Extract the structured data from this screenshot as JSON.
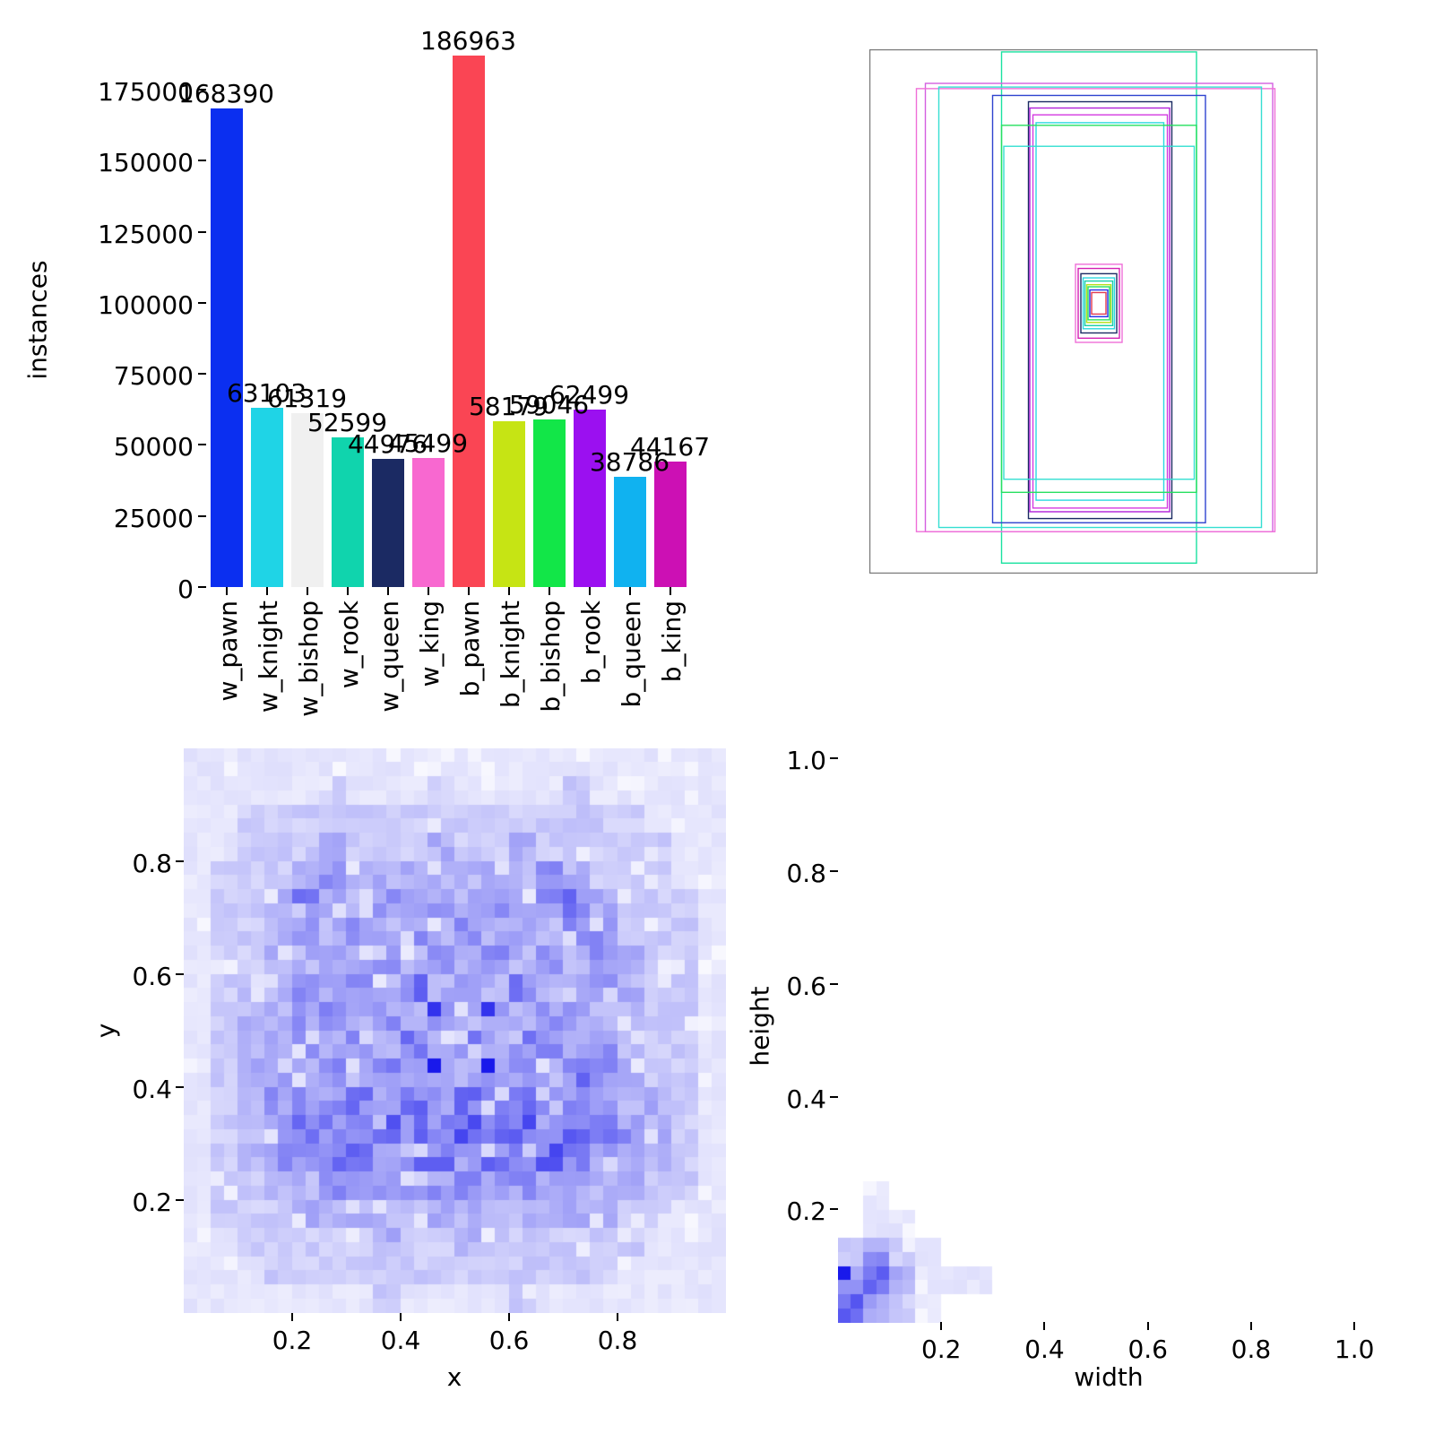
{
  "figure": {
    "background": "#ffffff"
  },
  "chart_data": [
    {
      "id": "instances_bar",
      "type": "bar",
      "title": "",
      "xlabel": "",
      "ylabel": "instances",
      "categories": [
        "w_pawn",
        "w_knight",
        "w_bishop",
        "w_rook",
        "w_queen",
        "w_king",
        "b_pawn",
        "b_knight",
        "b_bishop",
        "b_rook",
        "b_queen",
        "b_king"
      ],
      "values": [
        168390,
        63103,
        61319,
        52599,
        44976,
        45499,
        186963,
        58179,
        59046,
        62499,
        38786,
        44167
      ],
      "bar_colors": [
        "#0b2ff0",
        "#1fd4e6",
        "#f0f0f0",
        "#10d4ad",
        "#1b2a63",
        "#f868d0",
        "#fa4554",
        "#c6e414",
        "#12e648",
        "#9b10f0",
        "#10b2f0",
        "#cc10b4"
      ],
      "yticks": [
        0,
        25000,
        50000,
        75000,
        100000,
        125000,
        150000,
        175000
      ],
      "ylim": [
        0,
        187600
      ],
      "grid": false,
      "legend": "none"
    },
    {
      "id": "bbox_overlay",
      "type": "rect-overlay",
      "frame_color": "#777777",
      "rects": [
        [
          0.295,
          0.005,
          0.435,
          0.975,
          "#19e2a0"
        ],
        [
          0.125,
          0.065,
          0.775,
          0.855,
          "#d45fe0"
        ],
        [
          0.105,
          0.075,
          0.8,
          0.845,
          "#ef6fd8"
        ],
        [
          0.155,
          0.072,
          0.72,
          0.84,
          "#35dfd2"
        ],
        [
          0.275,
          0.088,
          0.475,
          0.815,
          "#2f43cf"
        ],
        [
          0.355,
          0.1,
          0.32,
          0.795,
          "#1b2a63"
        ],
        [
          0.358,
          0.112,
          0.312,
          0.77,
          "#b01fd9"
        ],
        [
          0.365,
          0.125,
          0.3,
          0.75,
          "#d43ae0"
        ],
        [
          0.372,
          0.14,
          0.285,
          0.72,
          "#2bd8e0"
        ],
        [
          0.295,
          0.145,
          0.435,
          0.7,
          "#27e060"
        ],
        [
          0.3,
          0.185,
          0.425,
          0.635,
          "#35dfd2"
        ],
        [
          0.46,
          0.41,
          0.104,
          0.149,
          "#ef6fd8"
        ],
        [
          0.466,
          0.418,
          0.092,
          0.133,
          "#d41fb4"
        ],
        [
          0.472,
          0.428,
          0.08,
          0.113,
          "#1b2a63"
        ],
        [
          0.477,
          0.436,
          0.07,
          0.097,
          "#2bd8e0"
        ],
        [
          0.481,
          0.442,
          0.062,
          0.085,
          "#19cfa8"
        ],
        [
          0.485,
          0.449,
          0.054,
          0.072,
          "#b4e019"
        ],
        [
          0.488,
          0.453,
          0.048,
          0.063,
          "#27e060"
        ],
        [
          0.492,
          0.459,
          0.04,
          0.051,
          "#1f2fe8"
        ],
        [
          0.496,
          0.464,
          0.032,
          0.041,
          "#e03a50"
        ]
      ]
    },
    {
      "id": "xy_heatmap",
      "type": "heatmap",
      "xlabel": "x",
      "ylabel": "y",
      "xticks": [
        0.2,
        0.4,
        0.6,
        0.8
      ],
      "yticks": [
        0.2,
        0.4,
        0.6,
        0.8
      ],
      "xlim": [
        0,
        1
      ],
      "ylim": [
        0,
        1
      ],
      "bins": 40,
      "colormap": "white-to-blue",
      "peaks": [
        [
          0.47,
          0.5
        ],
        [
          0.53,
          0.5
        ],
        [
          0.47,
          0.43
        ],
        [
          0.53,
          0.43
        ]
      ],
      "intensity_20x20": [
        [
          1,
          1,
          1,
          1,
          1,
          1,
          1,
          1,
          1,
          1,
          1,
          1,
          1,
          1,
          1,
          1,
          1,
          1,
          1,
          1
        ],
        [
          1,
          1,
          1,
          1,
          1,
          2,
          1,
          1,
          1,
          2,
          1,
          1,
          1,
          1,
          2,
          1,
          1,
          1,
          1,
          1
        ],
        [
          1,
          1,
          2,
          2,
          2,
          2,
          2,
          2,
          2,
          2,
          2,
          2,
          2,
          2,
          2,
          2,
          2,
          1,
          1,
          1
        ],
        [
          1,
          1,
          2,
          2,
          2,
          3,
          2,
          2,
          2,
          3,
          2,
          2,
          3,
          2,
          2,
          2,
          2,
          2,
          1,
          1
        ],
        [
          1,
          2,
          2,
          2,
          3,
          4,
          3,
          3,
          3,
          3,
          3,
          3,
          3,
          4,
          3,
          2,
          2,
          2,
          1,
          1
        ],
        [
          1,
          2,
          2,
          3,
          5,
          4,
          3,
          4,
          3,
          4,
          3,
          4,
          3,
          4,
          5,
          3,
          2,
          2,
          2,
          1
        ],
        [
          1,
          2,
          2,
          3,
          4,
          3,
          4,
          3,
          4,
          3,
          4,
          3,
          4,
          3,
          4,
          4,
          2,
          2,
          2,
          1
        ],
        [
          1,
          2,
          2,
          3,
          3,
          4,
          3,
          4,
          3,
          4,
          3,
          4,
          3,
          4,
          3,
          4,
          3,
          2,
          2,
          1
        ],
        [
          1,
          2,
          3,
          3,
          4,
          3,
          4,
          3,
          5,
          3,
          5,
          3,
          5,
          3,
          4,
          4,
          3,
          2,
          2,
          1
        ],
        [
          1,
          2,
          3,
          3,
          4,
          4,
          3,
          4,
          3,
          8,
          3,
          8,
          3,
          4,
          4,
          3,
          3,
          2,
          2,
          1
        ],
        [
          1,
          2,
          3,
          3,
          4,
          3,
          4,
          3,
          5,
          3,
          5,
          3,
          5,
          4,
          3,
          4,
          3,
          2,
          2,
          1
        ],
        [
          1,
          2,
          3,
          4,
          3,
          4,
          3,
          5,
          3,
          9,
          3,
          9,
          4,
          3,
          5,
          4,
          3,
          2,
          2,
          1
        ],
        [
          1,
          2,
          3,
          4,
          4,
          4,
          5,
          4,
          5,
          4,
          5,
          4,
          5,
          5,
          4,
          4,
          3,
          3,
          2,
          1
        ],
        [
          1,
          2,
          3,
          4,
          5,
          5,
          4,
          6,
          5,
          5,
          6,
          5,
          6,
          4,
          6,
          5,
          4,
          3,
          2,
          1
        ],
        [
          1,
          2,
          3,
          4,
          4,
          5,
          5,
          4,
          5,
          5,
          4,
          5,
          5,
          6,
          5,
          4,
          3,
          3,
          2,
          1
        ],
        [
          1,
          2,
          2,
          3,
          3,
          4,
          4,
          4,
          4,
          4,
          4,
          4,
          4,
          4,
          4,
          3,
          3,
          2,
          2,
          1
        ],
        [
          1,
          2,
          2,
          2,
          3,
          3,
          3,
          3,
          3,
          3,
          3,
          3,
          3,
          3,
          3,
          3,
          2,
          2,
          1,
          1
        ],
        [
          1,
          1,
          2,
          2,
          2,
          2,
          2,
          3,
          2,
          2,
          3,
          2,
          2,
          2,
          2,
          2,
          2,
          1,
          1,
          1
        ],
        [
          1,
          1,
          1,
          2,
          2,
          2,
          2,
          2,
          2,
          2,
          2,
          2,
          2,
          2,
          2,
          2,
          1,
          1,
          1,
          1
        ],
        [
          1,
          1,
          1,
          1,
          1,
          1,
          1,
          2,
          1,
          1,
          1,
          1,
          2,
          1,
          1,
          1,
          1,
          1,
          1,
          1
        ]
      ]
    },
    {
      "id": "wh_heatmap",
      "type": "heatmap",
      "xlabel": "width",
      "ylabel": "height",
      "xticks": [
        0.2,
        0.4,
        0.6,
        0.8,
        1.0
      ],
      "yticks": [
        0.2,
        0.4,
        0.6,
        0.8,
        1.0
      ],
      "xlim": [
        0,
        1.05
      ],
      "ylim": [
        0,
        1.05
      ],
      "bins": 40,
      "colormap": "white-to-blue",
      "peaks": [
        [
          0.04,
          0.08
        ]
      ],
      "intensity_20x20": [
        [
          0,
          0,
          0,
          0,
          0,
          0,
          0,
          0,
          0,
          0,
          0,
          0,
          0,
          0,
          0,
          0,
          0,
          0,
          0,
          0
        ],
        [
          0,
          0,
          0,
          0,
          0,
          0,
          0,
          0,
          0,
          0,
          0,
          0,
          0,
          0,
          0,
          0,
          0,
          0,
          0,
          0
        ],
        [
          0,
          0,
          0,
          0,
          0,
          0,
          0,
          0,
          0,
          0,
          0,
          0,
          0,
          0,
          0,
          0,
          0,
          0,
          0,
          0
        ],
        [
          0,
          0,
          0,
          0,
          0,
          0,
          0,
          0,
          0,
          0,
          0,
          0,
          0,
          0,
          0,
          0,
          0,
          0,
          0,
          0
        ],
        [
          0,
          0,
          0,
          0,
          0,
          0,
          0,
          0,
          0,
          0,
          0,
          0,
          0,
          0,
          0,
          0,
          0,
          0,
          0,
          0
        ],
        [
          0,
          0,
          0,
          0,
          0,
          0,
          0,
          0,
          0,
          0,
          0,
          0,
          0,
          0,
          0,
          0,
          0,
          0,
          0,
          0
        ],
        [
          0,
          0,
          0,
          0,
          0,
          0,
          0,
          0,
          0,
          0,
          0,
          0,
          0,
          0,
          0,
          0,
          0,
          0,
          0,
          0
        ],
        [
          0,
          0,
          0,
          0,
          0,
          0,
          0,
          0,
          0,
          0,
          0,
          0,
          0,
          0,
          0,
          0,
          0,
          0,
          0,
          0
        ],
        [
          0,
          0,
          0,
          0,
          0,
          0,
          0,
          0,
          0,
          0,
          0,
          0,
          0,
          0,
          0,
          0,
          0,
          0,
          0,
          0
        ],
        [
          0,
          0,
          0,
          0,
          0,
          0,
          0,
          0,
          0,
          0,
          0,
          0,
          0,
          0,
          0,
          0,
          0,
          0,
          0,
          0
        ],
        [
          0,
          0,
          0,
          0,
          0,
          0,
          0,
          0,
          0,
          0,
          0,
          0,
          0,
          0,
          0,
          0,
          0,
          0,
          0,
          0
        ],
        [
          0,
          0,
          0,
          0,
          0,
          0,
          0,
          0,
          0,
          0,
          0,
          0,
          0,
          0,
          0,
          0,
          0,
          0,
          0,
          0
        ],
        [
          0,
          0,
          0,
          0,
          0,
          0,
          0,
          0,
          0,
          0,
          0,
          0,
          0,
          0,
          0,
          0,
          0,
          0,
          0,
          0
        ],
        [
          0,
          0,
          0,
          0,
          0,
          0,
          0,
          0,
          0,
          0,
          0,
          0,
          0,
          0,
          0,
          0,
          0,
          0,
          0,
          0
        ],
        [
          0,
          0,
          0,
          0,
          0,
          0,
          0,
          0,
          0,
          0,
          0,
          0,
          0,
          0,
          0,
          0,
          0,
          0,
          0,
          0
        ],
        [
          0,
          1,
          0,
          0,
          0,
          0,
          0,
          0,
          0,
          0,
          0,
          0,
          0,
          0,
          0,
          0,
          0,
          0,
          0,
          0
        ],
        [
          0,
          1,
          1,
          0,
          0,
          0,
          0,
          0,
          0,
          0,
          0,
          0,
          0,
          0,
          0,
          0,
          0,
          0,
          0,
          0
        ],
        [
          2,
          4,
          2,
          1,
          0,
          0,
          0,
          0,
          0,
          0,
          0,
          0,
          0,
          0,
          0,
          0,
          0,
          0,
          0,
          0
        ],
        [
          9,
          6,
          3,
          1,
          1,
          1,
          0,
          0,
          0,
          0,
          0,
          0,
          0,
          0,
          0,
          0,
          0,
          0,
          0,
          0
        ],
        [
          6,
          4,
          2,
          1,
          0,
          0,
          0,
          0,
          0,
          0,
          0,
          0,
          0,
          0,
          0,
          0,
          0,
          0,
          0,
          0
        ]
      ]
    }
  ],
  "labels": {
    "bar_ylabel": "instances",
    "xy_xlabel": "x",
    "xy_ylabel": "y",
    "wh_xlabel": "width",
    "wh_ylabel": "height"
  }
}
